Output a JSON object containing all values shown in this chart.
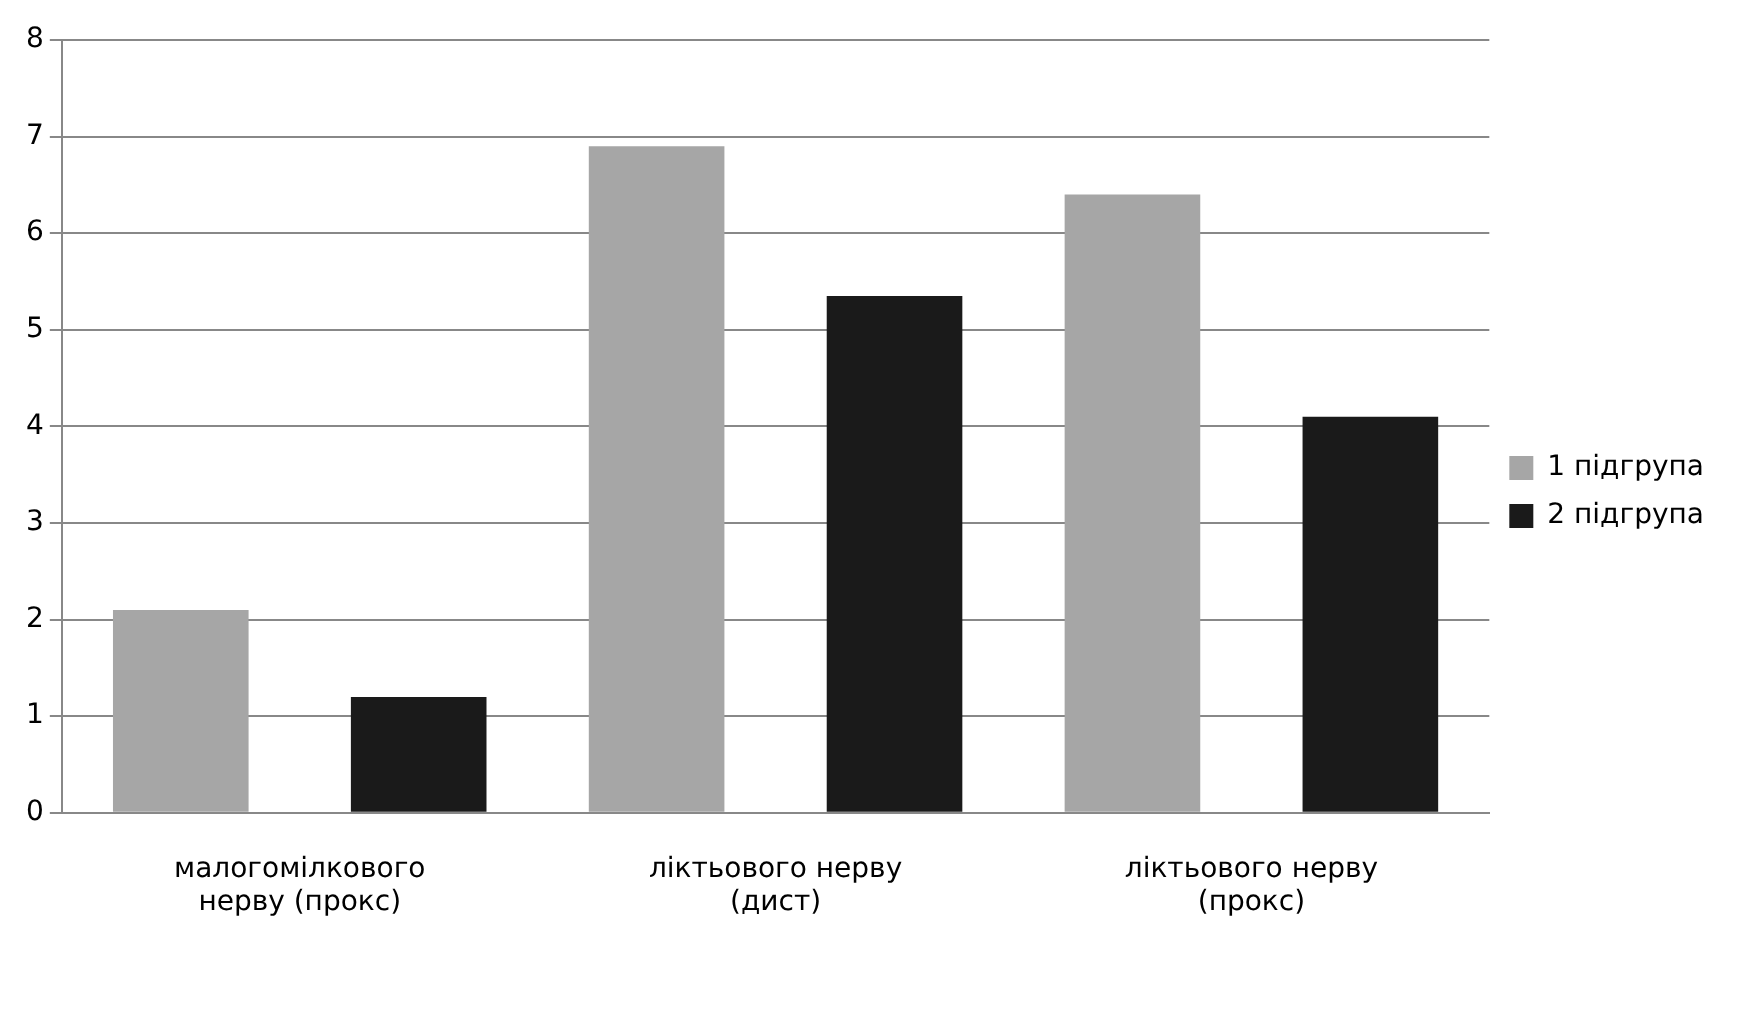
{
  "chart_data": {
    "type": "bar",
    "categories": [
      "малогомілкового нерву (прокс)",
      "ліктьового нерву (дист)",
      "ліктьового нерву (прокс)"
    ],
    "series": [
      {
        "name": "1 підгрупа",
        "color": "#a6a6a6",
        "values": [
          2.1,
          6.9,
          6.4
        ]
      },
      {
        "name": "2 підгрупа",
        "color": "#1a1a1a",
        "values": [
          1.2,
          5.35,
          4.1
        ]
      }
    ],
    "ylim": [
      0,
      8
    ],
    "yticks": [
      0,
      1,
      2,
      3,
      4,
      5,
      6,
      7,
      8
    ],
    "grid": "y",
    "legend": "right"
  }
}
